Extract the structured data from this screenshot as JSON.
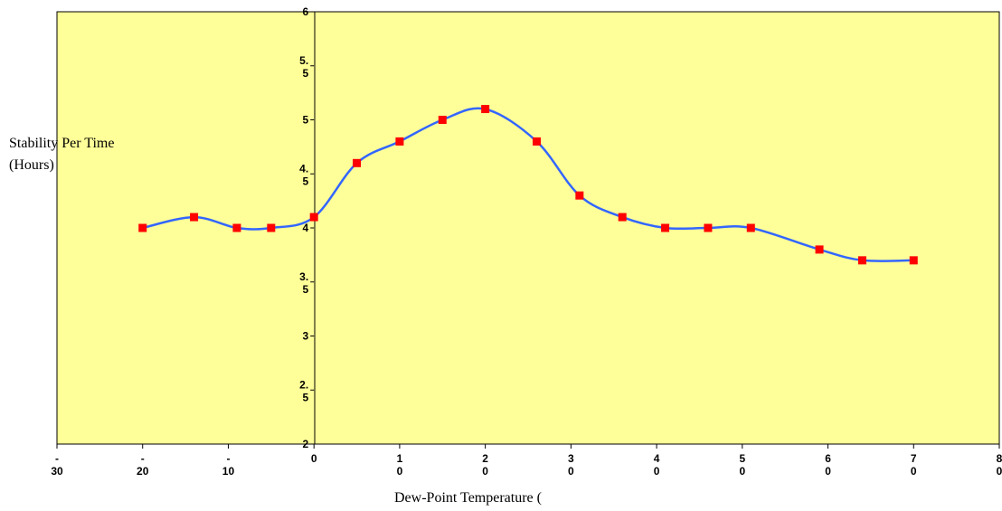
{
  "chart_data": {
    "type": "line",
    "title": "",
    "xlabel": "Dew-Point Temperature (",
    "ylabel_lines": [
      "Stability Per Time",
      "(Hours)"
    ],
    "xlim": [
      -30,
      80
    ],
    "ylim": [
      2,
      6
    ],
    "x_ticks": [
      -30,
      -20,
      -10,
      0,
      10,
      20,
      30,
      40,
      50,
      60,
      70,
      80
    ],
    "x_tick_labels": [
      [
        "-",
        "30"
      ],
      [
        "-",
        "20"
      ],
      [
        "-",
        "10"
      ],
      [
        "0"
      ],
      [
        "1",
        "0"
      ],
      [
        "2",
        "0"
      ],
      [
        "3",
        "0"
      ],
      [
        "4",
        "0"
      ],
      [
        "5",
        "0"
      ],
      [
        "6",
        "0"
      ],
      [
        "7",
        "0"
      ],
      [
        "8",
        "0"
      ]
    ],
    "y_ticks": [
      2,
      2.5,
      3,
      3.5,
      4,
      4.5,
      5,
      5.5,
      6
    ],
    "y_tick_labels": [
      [
        "2"
      ],
      [
        "2.",
        "5"
      ],
      [
        "3"
      ],
      [
        "3.",
        "5"
      ],
      [
        "4"
      ],
      [
        "4.",
        "5"
      ],
      [
        "5"
      ],
      [
        "5.",
        "5"
      ],
      [
        "6"
      ]
    ],
    "grid": false,
    "colors": {
      "plot_background": "#ffff99",
      "line": "#3366ff",
      "marker": "#ff0000"
    },
    "series": [
      {
        "x": [
          -20,
          -14,
          -9,
          -5,
          0,
          5,
          10,
          15,
          20,
          26,
          31,
          36,
          41,
          46,
          51,
          59,
          64,
          70
        ],
        "y": [
          4,
          4.1,
          4,
          4,
          4.1,
          4.6,
          4.8,
          5,
          5.1,
          4.8,
          4.3,
          4.1,
          4,
          4,
          4,
          3.8,
          3.7,
          3.7
        ]
      }
    ]
  }
}
